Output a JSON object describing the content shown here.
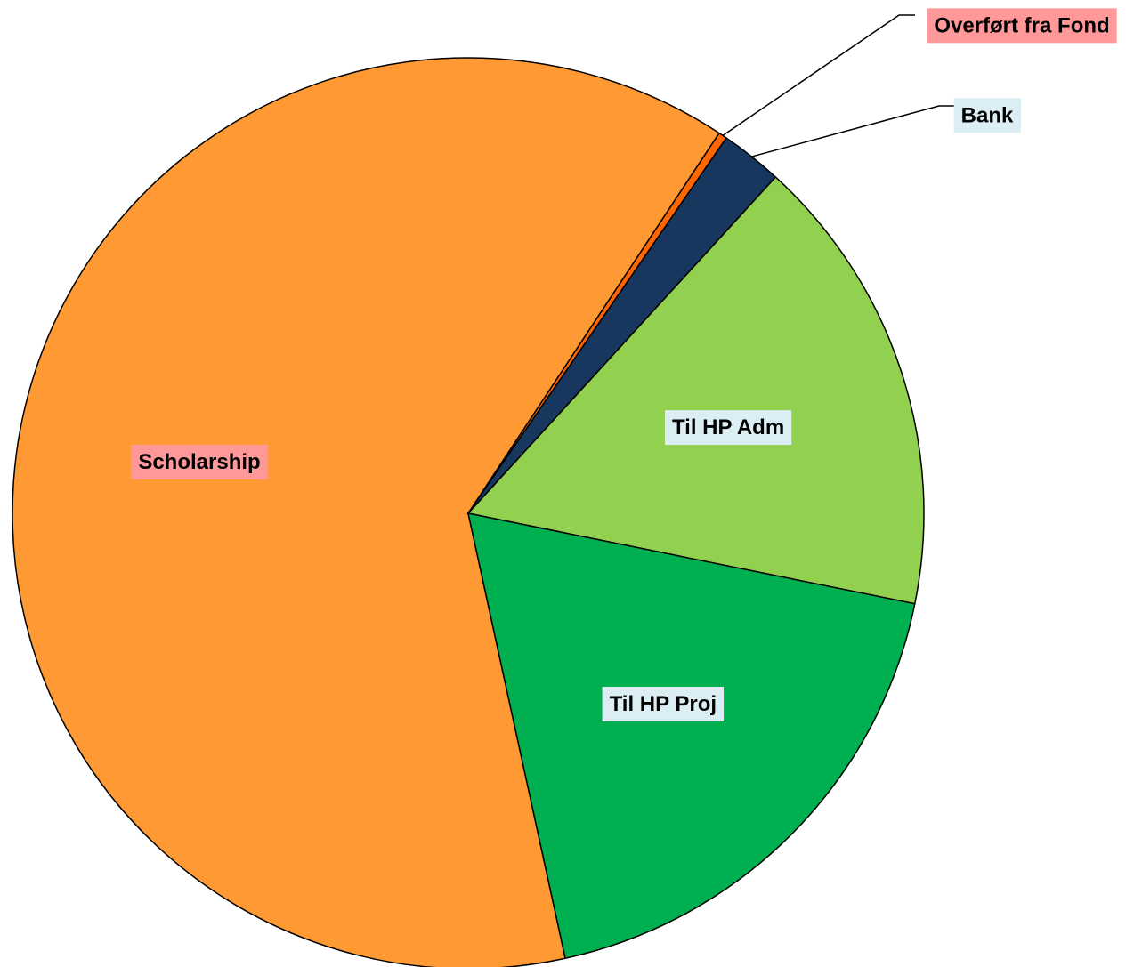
{
  "chart_data": {
    "type": "pie",
    "categories": [
      "Scholarship",
      "Overført fra Fond",
      "Bank",
      "Til HP Adm",
      "Til HP Proj"
    ],
    "values": [
      62.7,
      0.3,
      2.2,
      16.4,
      18.4
    ],
    "colors": [
      "#ff9933",
      "#ff6600",
      "#17375e",
      "#92d050",
      "#00b050"
    ],
    "label_colors": [
      "#ff9999",
      "#ff9999",
      "#daeef3",
      "#daeef3",
      "#daeef3"
    ],
    "start_angle": 167.7
  }
}
